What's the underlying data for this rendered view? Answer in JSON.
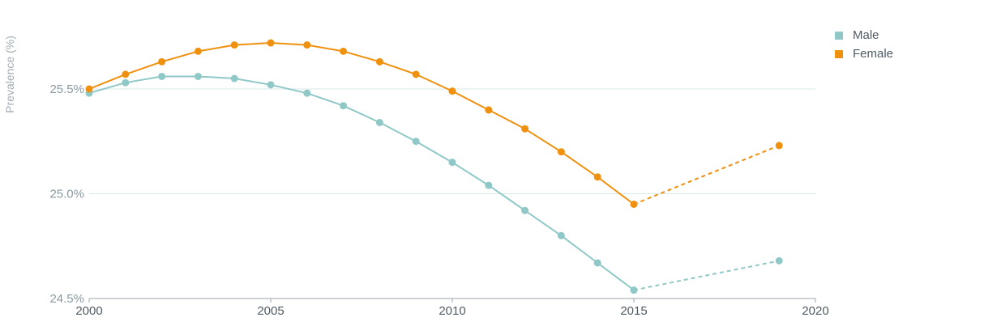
{
  "chart_data": {
    "type": "line",
    "title": "",
    "xlabel": "",
    "ylabel": "Prevalence (%)",
    "xlim": [
      2000,
      2020
    ],
    "ylim": [
      24.5,
      25.5
    ],
    "x_ticks": [
      2000,
      2005,
      2010,
      2015,
      2020
    ],
    "x_tick_labels": [
      "2000",
      "2005",
      "2010",
      "2015",
      "2020"
    ],
    "y_ticks": [
      24.5,
      25.0,
      25.5
    ],
    "y_tick_labels": [
      "24.5%",
      "25.0%",
      "25.5%"
    ],
    "grid": true,
    "legend_position": "top-right",
    "series": [
      {
        "name": "Male",
        "color": "#8fc8c6",
        "x": [
          2000,
          2001,
          2002,
          2003,
          2004,
          2005,
          2006,
          2007,
          2008,
          2009,
          2010,
          2011,
          2012,
          2013,
          2014,
          2015,
          2019
        ],
        "values": [
          25.48,
          25.53,
          25.56,
          25.56,
          25.55,
          25.52,
          25.48,
          25.42,
          25.34,
          25.25,
          25.15,
          25.04,
          24.92,
          24.8,
          24.67,
          24.54,
          24.68
        ],
        "dashed_from_x": 2015
      },
      {
        "name": "Female",
        "color": "#f0900f",
        "x": [
          2000,
          2001,
          2002,
          2003,
          2004,
          2005,
          2006,
          2007,
          2008,
          2009,
          2010,
          2011,
          2012,
          2013,
          2014,
          2015,
          2019
        ],
        "values": [
          25.5,
          25.57,
          25.63,
          25.68,
          25.71,
          25.72,
          25.71,
          25.68,
          25.63,
          25.57,
          25.49,
          25.4,
          25.31,
          25.2,
          25.08,
          24.95,
          25.23
        ],
        "dashed_from_x": 2015
      }
    ]
  }
}
